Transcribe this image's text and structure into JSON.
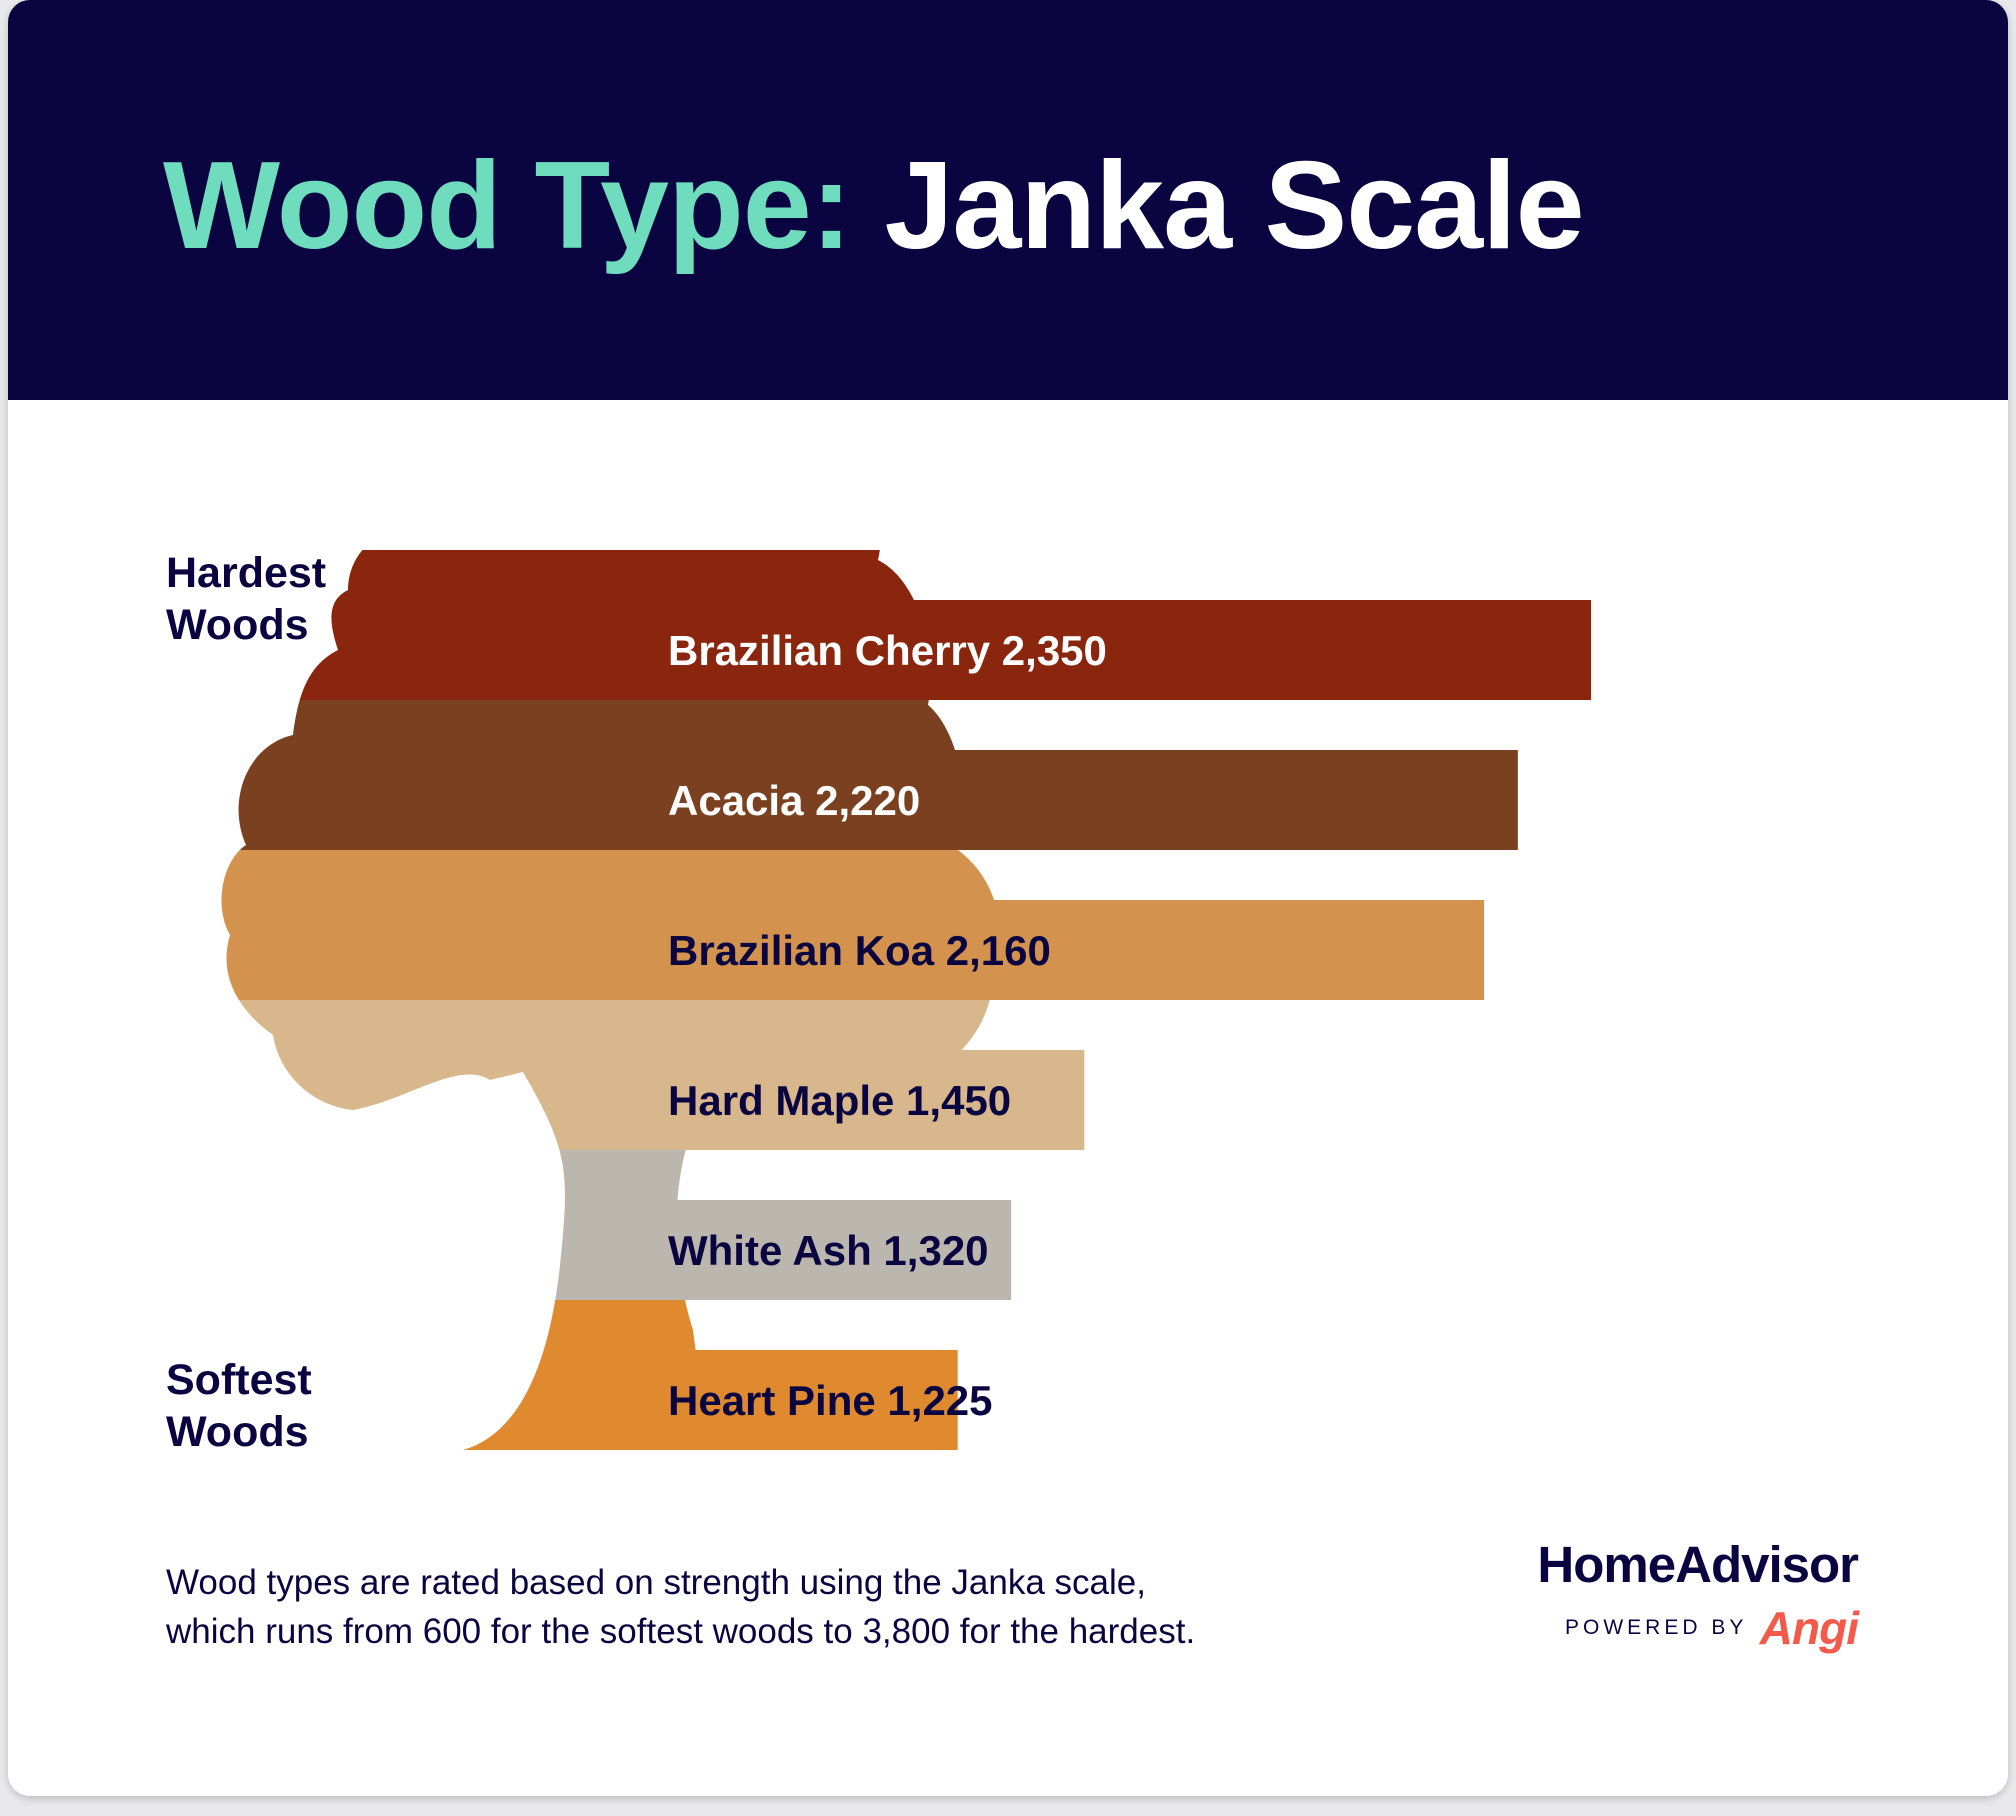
{
  "title": {
    "accent": "Wood Type:",
    "main": "Janka Scale"
  },
  "labels": {
    "hardest": [
      "Hardest",
      "Woods"
    ],
    "softest": [
      "Softest",
      "Woods"
    ]
  },
  "footnote": {
    "line1": "Wood types are rated based on strength using the Janka scale,",
    "line2": "which runs from 600 for the softest woods to 3,800 for the hardest."
  },
  "brand": {
    "name": "HomeAdvisor",
    "powered_by": "POWERED BY",
    "partner": "Angi"
  },
  "colors": {
    "header_bg": "#0a0540",
    "title_accent": "#6fddbd",
    "title_main": "#ffffff",
    "text_dark": "#0a0540",
    "angi": "#f25a4b"
  },
  "chart_data": {
    "type": "bar",
    "orientation": "horizontal",
    "categories": [
      "Brazilian Cherry",
      "Acacia",
      "Brazilian Koa",
      "Hard Maple",
      "White Ash",
      "Heart Pine"
    ],
    "values": [
      2350,
      2220,
      2160,
      1450,
      1320,
      1225
    ],
    "value_labels": [
      "2,350",
      "2,220",
      "2,160",
      "1,450",
      "1,320",
      "1,225"
    ],
    "bar_colors": [
      "#8a260d",
      "#7a401f",
      "#d3924e",
      "#d8b78c",
      "#bcb7ae",
      "#e08a30"
    ],
    "label_colors": [
      "#ffffff",
      "#ffffff",
      "#0a0540",
      "#0a0540",
      "#0a0540",
      "#0a0540"
    ],
    "title": "Wood Type: Janka Scale",
    "xlabel": "",
    "ylabel": "",
    "grid": false,
    "legend": "none"
  }
}
